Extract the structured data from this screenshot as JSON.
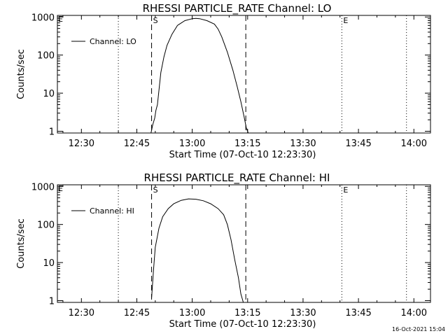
{
  "chart_data": [
    {
      "type": "line",
      "title": "RHESSI PARTICLE_RATE Channel: LO",
      "xlabel": "Start Time (07-Oct-10 12:23:30)",
      "ylabel": "Counts/sec",
      "y_scale": "log",
      "xlim": [
        "12:23:30",
        "14:04:30"
      ],
      "ylim": [
        0.9,
        1100
      ],
      "x_ticks": [
        "12:30",
        "12:45",
        "13:00",
        "13:15",
        "13:30",
        "13:45",
        "14:00"
      ],
      "y_ticks": [
        "1",
        "10",
        "100",
        "1000"
      ],
      "legend": {
        "position": "top-left",
        "entries": [
          "Channel: LO"
        ]
      },
      "series": [
        {
          "name": "Channel: LO",
          "x": [
            "12:48:50",
            "12:49:20",
            "12:49:50",
            "12:50:10",
            "12:50:35",
            "12:51:00",
            "12:51:30",
            "12:52:20",
            "12:53:10",
            "12:54:30",
            "12:56:00",
            "12:58:00",
            "13:00:00",
            "13:01:00",
            "13:02:00",
            "13:04:00",
            "13:06:00",
            "13:07:00",
            "13:08:00",
            "13:09:30",
            "13:11:00",
            "13:12:10",
            "13:13:10",
            "13:14:00",
            "13:14:40",
            "13:15:10"
          ],
          "values": [
            0.9,
            1.5,
            2.2,
            3.5,
            5.0,
            12,
            35,
            90,
            180,
            350,
            600,
            800,
            900,
            920,
            900,
            800,
            650,
            480,
            300,
            120,
            40,
            15,
            6,
            2.5,
            1.2,
            0.9
          ]
        }
      ],
      "markers": [
        {
          "time": "12:49:00",
          "label": "S",
          "style": "dashed"
        },
        {
          "time": "13:14:30",
          "label": "",
          "style": "dashed"
        },
        {
          "time": "13:40:30",
          "label": "E",
          "style": "dotted"
        },
        {
          "time": "12:40:00",
          "label": "",
          "style": "dotted"
        },
        {
          "time": "13:58:00",
          "label": "",
          "style": "dotted"
        }
      ]
    },
    {
      "type": "line",
      "title": "RHESSI PARTICLE_RATE Channel: HI",
      "xlabel": "Start Time (07-Oct-10 12:23:30)",
      "ylabel": "Counts/sec",
      "y_scale": "log",
      "xlim": [
        "12:23:30",
        "14:04:30"
      ],
      "ylim": [
        0.9,
        1100
      ],
      "x_ticks": [
        "12:30",
        "12:45",
        "13:00",
        "13:15",
        "13:30",
        "13:45",
        "14:00"
      ],
      "y_ticks": [
        "1",
        "10",
        "100",
        "1000"
      ],
      "legend": {
        "position": "top-left",
        "entries": [
          "Channel: HI"
        ]
      },
      "series": [
        {
          "name": "Channel: HI",
          "x": [
            "12:49:00",
            "12:49:30",
            "12:50:00",
            "12:51:00",
            "12:52:00",
            "12:53:30",
            "12:55:00",
            "12:57:00",
            "12:59:00",
            "13:01:00",
            "13:03:00",
            "13:05:00",
            "13:07:00",
            "13:08:30",
            "13:09:30",
            "13:10:30",
            "13:11:30",
            "13:12:30",
            "13:13:10",
            "13:13:50"
          ],
          "values": [
            1.2,
            6,
            25,
            80,
            160,
            260,
            350,
            430,
            470,
            460,
            420,
            350,
            260,
            180,
            100,
            40,
            12,
            4,
            1.5,
            0.9
          ]
        }
      ],
      "markers": [
        {
          "time": "12:49:00",
          "label": "S",
          "style": "dashed"
        },
        {
          "time": "13:14:30",
          "label": "",
          "style": "dashed"
        },
        {
          "time": "13:40:30",
          "label": "E",
          "style": "dotted"
        },
        {
          "time": "12:40:00",
          "label": "",
          "style": "dotted"
        },
        {
          "time": "13:58:00",
          "label": "",
          "style": "dotted"
        }
      ]
    }
  ],
  "footer": {
    "timestamp": "16-Oct-2021 15:04"
  }
}
